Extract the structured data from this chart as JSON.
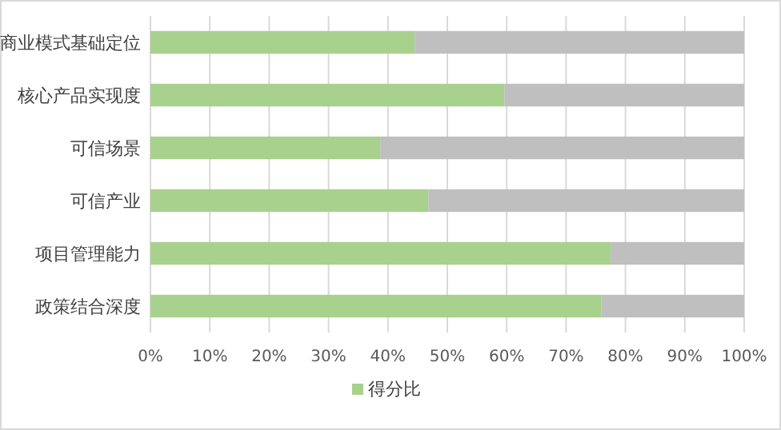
{
  "chart_data": {
    "type": "bar",
    "orientation": "horizontal",
    "stacked": true,
    "categories": [
      "商业模式基础定位",
      "核心产品实现度",
      "可信场景",
      "可信产业",
      "项目管理能力",
      "政策结合深度"
    ],
    "series": [
      {
        "name": "得分比",
        "color": "#a9d18e",
        "values": [
          44.5,
          59.6,
          38.7,
          46.8,
          77.5,
          75.9
        ]
      },
      {
        "color": "#bfbfbf",
        "values": [
          55.5,
          40.4,
          61.3,
          53.2,
          22.5,
          24.1
        ]
      }
    ],
    "xlim": [
      0,
      100
    ],
    "xticks": [
      {
        "value": 0,
        "label": "0%"
      },
      {
        "value": 10,
        "label": "10%"
      },
      {
        "value": 20,
        "label": "20%"
      },
      {
        "value": 30,
        "label": "30%"
      },
      {
        "value": 40,
        "label": "40%"
      },
      {
        "value": 50,
        "label": "50%"
      },
      {
        "value": 60,
        "label": "60%"
      },
      {
        "value": 70,
        "label": "70%"
      },
      {
        "value": 80,
        "label": "80%"
      },
      {
        "value": 90,
        "label": "90%"
      },
      {
        "value": 100,
        "label": "100%"
      }
    ],
    "grid": "x",
    "legend": "bottom"
  }
}
